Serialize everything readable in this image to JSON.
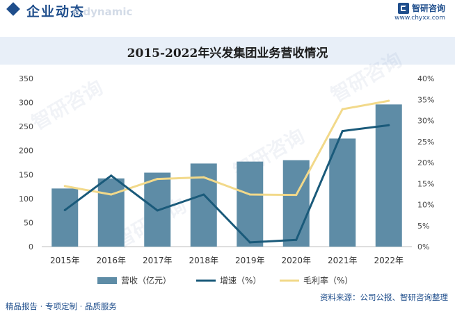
{
  "header": {
    "section_title": "企业动态",
    "section_subtitle": "e dynamic",
    "brand_name": "智研咨询",
    "brand_url": "www.chyxx.com"
  },
  "footer": {
    "left": "精品报告 · 专项定制 · 品质服务",
    "source": "资料来源：公司公报、智研咨询整理"
  },
  "watermark_text": "智研咨询",
  "colors": {
    "bar": "#5e8ca6",
    "growth_line": "#1a5a7a",
    "margin_line": "#f2d98a",
    "brand": "#1f4e8c"
  },
  "chart_data": {
    "type": "bar",
    "title": "2015-2022年兴发集团业务营收情况",
    "categories": [
      "2015年",
      "2016年",
      "2017年",
      "2018年",
      "2019年",
      "2020年",
      "2021年",
      "2022年"
    ],
    "series": [
      {
        "name": "营收（亿元）",
        "type": "bar",
        "axis": "left",
        "values": [
          121,
          142,
          154,
          173,
          177,
          180,
          225,
          296
        ]
      },
      {
        "name": "增速（%）",
        "type": "line",
        "axis": "right",
        "values": [
          8.7,
          16.9,
          8.6,
          12.4,
          1.0,
          1.6,
          27.5,
          28.9
        ]
      },
      {
        "name": "毛利率（%）",
        "type": "line",
        "axis": "right",
        "values": [
          14.4,
          12.4,
          16.1,
          16.5,
          12.4,
          12.3,
          32.7,
          34.7
        ]
      }
    ],
    "left_axis": {
      "ticks": [
        "0",
        "50",
        "100",
        "150",
        "200",
        "250",
        "300",
        "350"
      ],
      "ylim": [
        0,
        350
      ]
    },
    "right_axis": {
      "ticks": [
        "0%",
        "5%",
        "10%",
        "15%",
        "20%",
        "25%",
        "30%",
        "35%",
        "40%"
      ],
      "ylim": [
        0,
        40
      ]
    },
    "grid": false,
    "legend_position": "bottom"
  }
}
